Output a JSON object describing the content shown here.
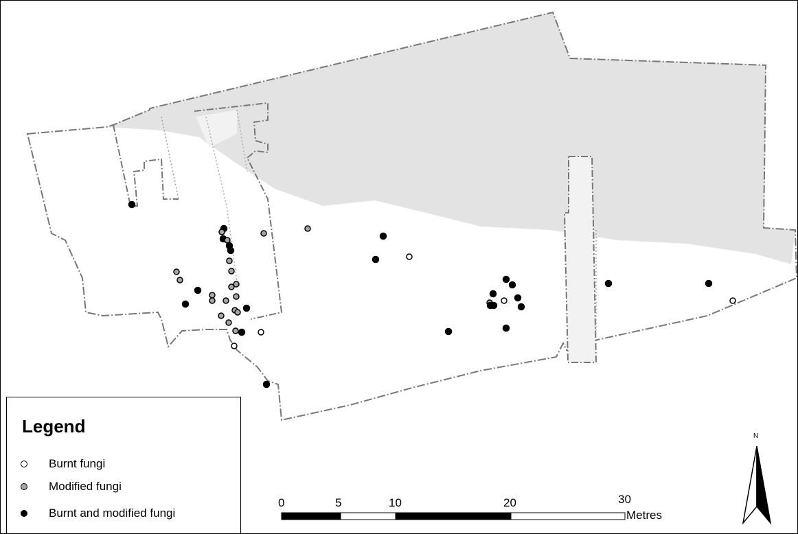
{
  "legend": {
    "title": "Legend",
    "items": [
      {
        "label": "Burnt fungi",
        "symbol": "white-dot-icon",
        "fill": "#ffffff"
      },
      {
        "label": "Modified fungi",
        "symbol": "grey-dot-icon",
        "fill": "#a6a6a6"
      },
      {
        "label": "Burnt and modified fungi",
        "symbol": "black-dot-icon",
        "fill": "#000000"
      }
    ]
  },
  "scale_bar": {
    "ticks": [
      "0",
      "5",
      "10",
      "20",
      "30"
    ],
    "unit": "Metres"
  },
  "north_arrow": {
    "label": "N"
  },
  "colors": {
    "shaded_area": "#e3e3e3",
    "boundary": "#777777",
    "burnt": "#ffffff",
    "modified": "#a6a6a6",
    "burnt_modified": "#000000"
  }
}
